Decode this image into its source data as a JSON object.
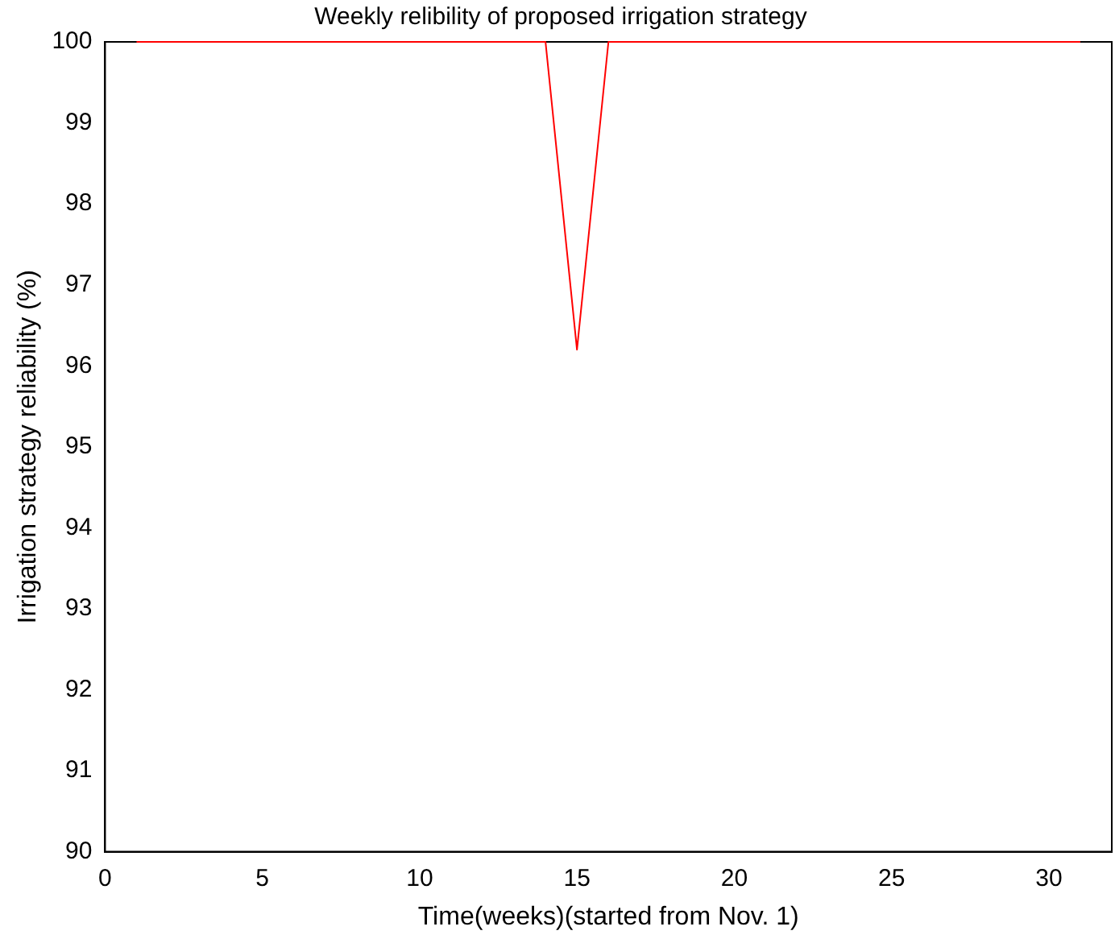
{
  "chart_data": {
    "type": "line",
    "title": "Weekly relibility of proposed irrigation strategy",
    "xlabel": "Time(weeks)(started from Nov. 1)",
    "ylabel": "Irrigation strategy reliability (%)",
    "x": [
      1,
      2,
      3,
      4,
      5,
      6,
      7,
      8,
      9,
      10,
      11,
      12,
      13,
      14,
      15,
      16,
      17,
      18,
      19,
      20,
      21,
      22,
      23,
      24,
      25,
      26,
      27,
      28,
      29,
      30,
      31
    ],
    "series": [
      {
        "color": "#ff0000",
        "values": [
          100,
          100,
          100,
          100,
          100,
          100,
          100,
          100,
          100,
          100,
          100,
          100,
          100,
          100,
          96.2,
          100,
          100,
          100,
          100,
          100,
          100,
          100,
          100,
          100,
          100,
          100,
          100,
          100,
          100,
          100,
          100
        ]
      }
    ],
    "xlim": [
      0,
      32
    ],
    "xticks": [
      0,
      5,
      10,
      15,
      20,
      25,
      30
    ],
    "ylim": [
      90,
      100
    ],
    "yticks": [
      90,
      91,
      92,
      93,
      94,
      95,
      96,
      97,
      98,
      99,
      100
    ],
    "grid": false,
    "legend": false,
    "marker": "none",
    "line_style": "solid"
  }
}
